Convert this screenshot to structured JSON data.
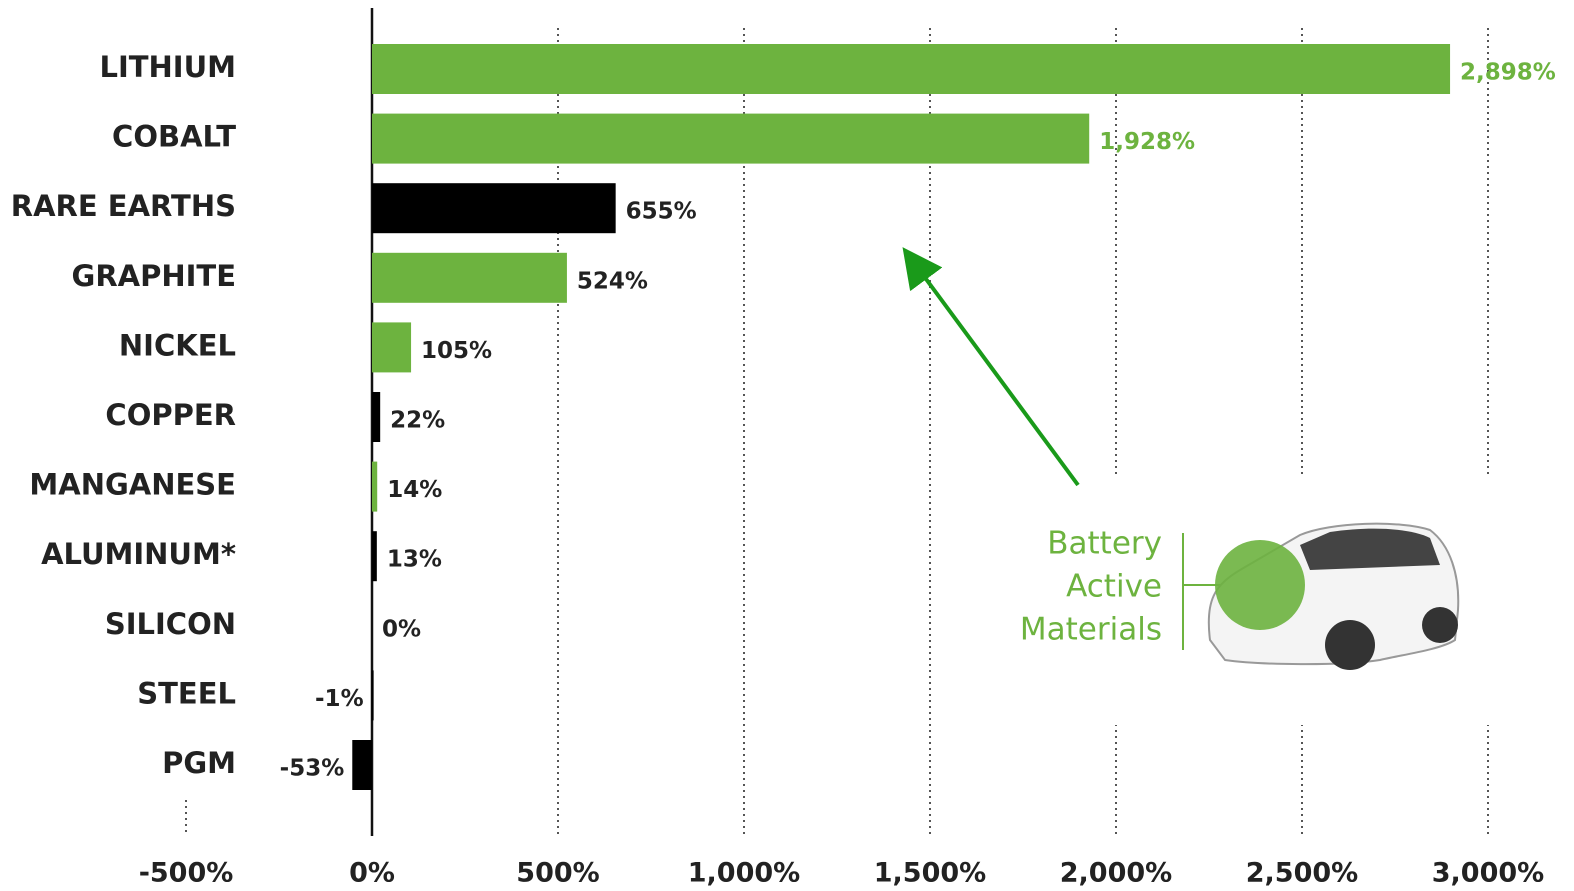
{
  "chart_data": {
    "type": "bar",
    "orientation": "horizontal",
    "categories": [
      "LITHIUM",
      "COBALT",
      "RARE EARTHS",
      "GRAPHITE",
      "NICKEL",
      "COPPER",
      "MANGANESE",
      "ALUMINUM*",
      "SILICON",
      "STEEL",
      "PGM"
    ],
    "values": [
      2898,
      1928,
      655,
      524,
      105,
      22,
      14,
      13,
      0,
      -1,
      -53
    ],
    "value_labels": [
      "2,898%",
      "1,928%",
      "655%",
      "524%",
      "105%",
      "22%",
      "14%",
      "13%",
      "0%",
      "-1%",
      "-53%"
    ],
    "colors": [
      "#6db33f",
      "#6db33f",
      "#000000",
      "#6db33f",
      "#6db33f",
      "#000000",
      "#6db33f",
      "#000000",
      "#000000",
      "#000000",
      "#000000"
    ],
    "value_label_colors": [
      "#6db33f",
      "#6db33f",
      "#222222",
      "#222222",
      "#222222",
      "#222222",
      "#222222",
      "#222222",
      "#222222",
      "#222222",
      "#222222"
    ],
    "xlim": [
      -500,
      3000
    ],
    "xticks": [
      {
        "value": -500,
        "label": "-500%"
      },
      {
        "value": 0,
        "label": "0%"
      },
      {
        "value": 500,
        "label": "500%"
      },
      {
        "value": 1000,
        "label": "1,000%"
      },
      {
        "value": 1500,
        "label": "1,500%"
      },
      {
        "value": 2000,
        "label": "2,000%"
      },
      {
        "value": 2500,
        "label": "2,500%"
      },
      {
        "value": 3000,
        "label": "3,000%"
      }
    ],
    "grid": true,
    "annotation": [
      "Battery",
      "Active",
      "Materials"
    ],
    "annotation_color": "#6db33f"
  }
}
